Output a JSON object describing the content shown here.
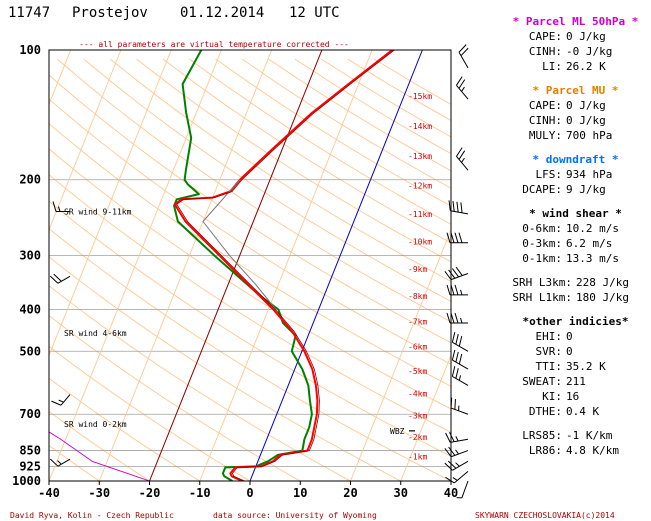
{
  "header": {
    "station": "11747",
    "name": "Prostejov",
    "date": "01.12.2014",
    "time": "12 UTC",
    "note": "--- all parameters are virtual temperature corrected ---"
  },
  "footer": {
    "author": "David Ryva, Kolin - Czech Republic",
    "source": "data source: University of Wyoming",
    "copyright": "SKYWARN CZECHOSLOVAKIA(c)2014"
  },
  "colors": {
    "temperature": "#ff0000",
    "dewpoint": "#008000",
    "parcel_ml": "#cc00cc",
    "parcel_mu": "#e08000",
    "downdraft": "#0070ff",
    "dry_adiabat": "#ffc890",
    "isotherm_zero": "#0000cc",
    "isotherm_warm": "#8b0000",
    "height_labels": "#d40000"
  },
  "chart_data": {
    "type": "line",
    "chart_kind": "skew-T log-p sounding",
    "x_axis": {
      "label": "",
      "ticks": [
        -40,
        -30,
        -20,
        -10,
        0,
        10,
        20,
        30,
        40
      ],
      "range": [
        -40,
        40
      ]
    },
    "y_axis": {
      "label": "",
      "scale": "log",
      "ticks": [
        100,
        200,
        300,
        400,
        500,
        700,
        850,
        925,
        1000
      ],
      "range": [
        1000,
        100
      ]
    },
    "height_levels": [
      {
        "label": "-1km",
        "p": 877
      },
      {
        "label": "-2km",
        "p": 790
      },
      {
        "label": "-3km",
        "p": 705
      },
      {
        "label": "-4km",
        "p": 626
      },
      {
        "label": "-5km",
        "p": 555
      },
      {
        "label": "-6km",
        "p": 488
      },
      {
        "label": "-7km",
        "p": 427
      },
      {
        "label": "-8km",
        "p": 372
      },
      {
        "label": "-9km",
        "p": 322
      },
      {
        "label": "-10km",
        "p": 278
      },
      {
        "label": "-11km",
        "p": 240
      },
      {
        "label": "-12km",
        "p": 206
      },
      {
        "label": "-13km",
        "p": 176
      },
      {
        "label": "-14km",
        "p": 150
      },
      {
        "label": "-15km",
        "p": 128
      }
    ],
    "layer_labels": [
      {
        "label": "SR wind 9-11km",
        "p": 237
      },
      {
        "label": "SR wind 4-6km",
        "p": 453
      },
      {
        "label": "SR wind 0-2km",
        "p": 738
      }
    ],
    "wbz_label": "WBZ",
    "series": [
      {
        "role": "temperature",
        "points": [
          [
            1000,
            -1.5
          ],
          [
            975,
            -4.0
          ],
          [
            960,
            -4.5
          ],
          [
            930,
            -4.0
          ],
          [
            925,
            1.0
          ],
          [
            900,
            3.0
          ],
          [
            870,
            4.0
          ],
          [
            850,
            9.0
          ],
          [
            800,
            9.0
          ],
          [
            750,
            8.5
          ],
          [
            700,
            8.0
          ],
          [
            650,
            7.0
          ],
          [
            600,
            5.5
          ],
          [
            550,
            3.5
          ],
          [
            500,
            0.5
          ],
          [
            450,
            -3.5
          ],
          [
            400,
            -9.0
          ],
          [
            350,
            -16.0
          ],
          [
            300,
            -24.0
          ],
          [
            250,
            -33.5
          ],
          [
            228,
            -37.0
          ],
          [
            222,
            -36.0
          ],
          [
            220,
            -30.0
          ],
          [
            213,
            -27.0
          ],
          [
            200,
            -26.0
          ],
          [
            170,
            -22.0
          ],
          [
            140,
            -17.0
          ],
          [
            120,
            -12.0
          ],
          [
            100,
            -6.0
          ]
        ]
      },
      {
        "role": "dewpoint",
        "points": [
          [
            1000,
            -3.5
          ],
          [
            975,
            -5.5
          ],
          [
            960,
            -6.0
          ],
          [
            930,
            -6.0
          ],
          [
            925,
            0.0
          ],
          [
            900,
            2.0
          ],
          [
            870,
            3.5
          ],
          [
            850,
            8.0
          ],
          [
            800,
            7.5
          ],
          [
            750,
            7.5
          ],
          [
            700,
            7.0
          ],
          [
            650,
            5.5
          ],
          [
            600,
            4.0
          ],
          [
            550,
            1.5
          ],
          [
            500,
            -2.0
          ],
          [
            460,
            -2.5
          ],
          [
            430,
            -6.0
          ],
          [
            400,
            -8.0
          ],
          [
            370,
            -13.0
          ],
          [
            300,
            -25.0
          ],
          [
            250,
            -35.0
          ],
          [
            230,
            -37.0
          ],
          [
            222,
            -37.0
          ],
          [
            216,
            -33.0
          ],
          [
            205,
            -36.0
          ],
          [
            200,
            -37.0
          ],
          [
            190,
            -37.5
          ],
          [
            160,
            -39.0
          ],
          [
            140,
            -42.0
          ],
          [
            120,
            -45.0
          ],
          [
            100,
            -44.0
          ]
        ]
      },
      {
        "role": "parcel_ml",
        "points": [
          [
            1000,
            -20.0
          ],
          [
            900,
            -33.0
          ],
          [
            800,
            -41.0
          ],
          [
            700,
            -51.0
          ],
          [
            600,
            -59.0
          ],
          [
            500,
            -68.0
          ],
          [
            400,
            -76.0
          ],
          [
            300,
            -85.0
          ],
          [
            250,
            -90.0
          ],
          [
            200,
            -96.0
          ],
          [
            150,
            -103.0
          ],
          [
            100,
            -113.0
          ]
        ]
      },
      {
        "role": "ml_parcel_segment",
        "points": [
          [
            400,
            -8.5
          ],
          [
            350,
            -14.5
          ],
          [
            300,
            -22.0
          ],
          [
            250,
            -30.0
          ],
          [
            200,
            -26.0
          ]
        ]
      }
    ],
    "wind_barbs": [
      {
        "p": 1000,
        "dir": 200,
        "speed": 5
      },
      {
        "p": 950,
        "dir": 230,
        "speed": 15
      },
      {
        "p": 900,
        "dir": 240,
        "speed": 25
      },
      {
        "p": 850,
        "dir": 250,
        "speed": 25
      },
      {
        "p": 800,
        "dir": 260,
        "speed": 25
      },
      {
        "p": 700,
        "dir": 290,
        "speed": 25
      },
      {
        "p": 600,
        "dir": 300,
        "speed": 25
      },
      {
        "p": 550,
        "dir": 300,
        "speed": 30
      },
      {
        "p": 500,
        "dir": 300,
        "speed": 30
      },
      {
        "p": 430,
        "dir": 270,
        "speed": 35
      },
      {
        "p": 370,
        "dir": 270,
        "speed": 35
      },
      {
        "p": 330,
        "dir": 250,
        "speed": 40
      },
      {
        "p": 280,
        "dir": 270,
        "speed": 40
      },
      {
        "p": 240,
        "dir": 280,
        "speed": 40
      },
      {
        "p": 190,
        "dir": 320,
        "speed": 25
      },
      {
        "p": 130,
        "dir": 320,
        "speed": 25
      },
      {
        "p": 110,
        "dir": 330,
        "speed": 20
      }
    ],
    "left_hodo_barbs": [
      {
        "p": 237,
        "dir": 270,
        "speed": 15
      },
      {
        "p": 335,
        "dir": 240,
        "speed": 20
      },
      {
        "p": 630,
        "dir": 220,
        "speed": 15
      },
      {
        "p": 890,
        "dir": 240,
        "speed": 15
      }
    ]
  },
  "panel": {
    "parcel_ml": {
      "title": "* Parcel ML 50hPa *",
      "rows": [
        {
          "k": "CAPE:",
          "v": "0 J/kg"
        },
        {
          "k": "CINH:",
          "v": "-0 J/kg"
        },
        {
          "k": "LI:",
          "v": "26.2 K"
        }
      ]
    },
    "parcel_mu": {
      "title": "* Parcel MU *",
      "rows": [
        {
          "k": "CAPE:",
          "v": "0 J/kg"
        },
        {
          "k": "CINH:",
          "v": "0 J/kg"
        },
        {
          "k": "MULY:",
          "v": "700 hPa"
        }
      ]
    },
    "downdraft": {
      "title": "* downdraft *",
      "rows": [
        {
          "k": "LFS:",
          "v": "934 hPa"
        },
        {
          "k": "DCAPE:",
          "v": "9 J/kg"
        }
      ]
    },
    "wind_shear": {
      "title": "* wind shear *",
      "rows": [
        {
          "k": "0-6km:",
          "v": "10.2 m/s"
        },
        {
          "k": "0-3km:",
          "v": "6.2 m/s"
        },
        {
          "k": "0-1km:",
          "v": "13.3 m/s"
        }
      ],
      "srh": [
        {
          "k": "SRH L3km:",
          "v": "228 J/kg"
        },
        {
          "k": "SRH L1km:",
          "v": "180 J/kg"
        }
      ]
    },
    "other": {
      "title": "*other indicies*",
      "rows": [
        {
          "k": "EHI:",
          "v": "0"
        },
        {
          "k": "SVR:",
          "v": "0"
        },
        {
          "k": "TTI:",
          "v": "35.2 K"
        },
        {
          "k": "SWEAT:",
          "v": "211"
        },
        {
          "k": "KI:",
          "v": "16"
        },
        {
          "k": "DTHE:",
          "v": "0.4 K"
        }
      ],
      "lapse": [
        {
          "k": "LRS85:",
          "v": "-1 K/km"
        },
        {
          "k": "LR86:",
          "v": "4.8 K/km"
        }
      ]
    }
  }
}
